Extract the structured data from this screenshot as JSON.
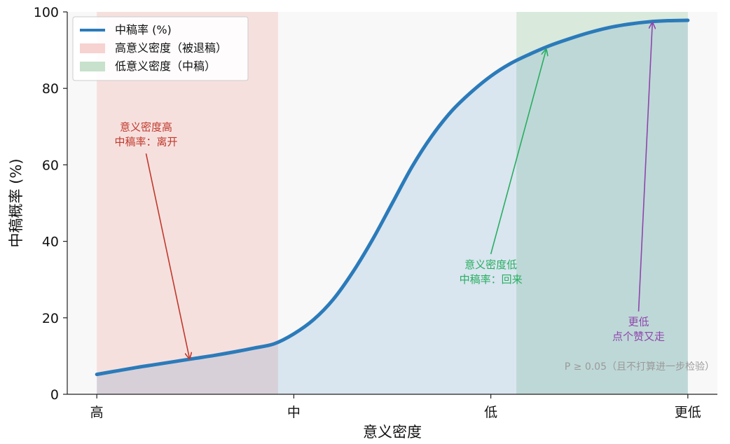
{
  "chart_data": {
    "type": "line",
    "title": "",
    "xlabel": "意义密度",
    "ylabel": "中稿概率 (%)",
    "xlim": [
      -0.15,
      3.15
    ],
    "ylim": [
      0,
      100
    ],
    "x_ticks": [
      {
        "value": 0,
        "label": "高"
      },
      {
        "value": 1,
        "label": "中"
      },
      {
        "value": 2,
        "label": "低"
      },
      {
        "value": 3,
        "label": "更低"
      }
    ],
    "y_ticks": [
      0,
      20,
      40,
      60,
      80,
      100
    ],
    "series": [
      {
        "name": "中稿率 (%)",
        "color": "#2b7bba",
        "fill": true,
        "x": [
          0.0,
          0.1,
          0.2,
          0.3,
          0.4,
          0.5,
          0.6,
          0.7,
          0.8,
          0.9,
          1.0,
          1.1,
          1.2,
          1.3,
          1.4,
          1.5,
          1.6,
          1.7,
          1.8,
          1.9,
          2.0,
          2.1,
          2.2,
          2.3,
          2.4,
          2.5,
          2.6,
          2.7,
          2.8,
          2.9,
          3.0
        ],
        "y": [
          5.2,
          6.1,
          7.0,
          7.8,
          8.6,
          9.4,
          10.2,
          11.1,
          12.1,
          13.2,
          15.8,
          19.5,
          24.8,
          32.0,
          40.5,
          50.0,
          59.5,
          67.5,
          74.0,
          79.0,
          83.2,
          86.5,
          89.0,
          91.2,
          93.0,
          94.6,
          95.9,
          96.8,
          97.4,
          97.7,
          97.8
        ]
      }
    ],
    "regions": [
      {
        "label": "高意义密度（被退稿）",
        "x0": 0.0,
        "x1": 0.92,
        "color": "#f4c7c4"
      },
      {
        "label": "低意义密度（中稿）",
        "x0": 2.13,
        "x1": 3.0,
        "color": "#b9d9bf"
      }
    ],
    "annotations": [
      {
        "lines": [
          "意义密度高",
          "中稿率：离开"
        ],
        "color": "#c0392b",
        "text_x": 0.25,
        "text_y": 69,
        "arrow_x": 0.47,
        "arrow_y": 9.5
      },
      {
        "lines": [
          "意义密度低",
          "中稿率：回来"
        ],
        "color": "#27ae60",
        "text_x": 2.0,
        "text_y": 33,
        "arrow_x": 2.28,
        "arrow_y": 90
      },
      {
        "lines": [
          "更低",
          "点个赞又走"
        ],
        "color": "#8e44ad",
        "text_x": 2.75,
        "text_y": 18,
        "arrow_x": 2.82,
        "arrow_y": 97
      }
    ],
    "note": "P ≥ 0.05（且不打算进一步检验）",
    "legend": "top-left",
    "grid": false
  }
}
